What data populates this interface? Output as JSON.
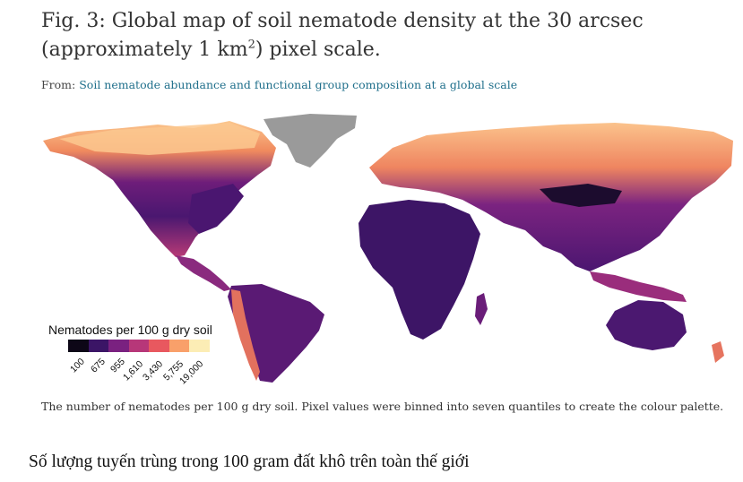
{
  "figure": {
    "title_line1": "Fig. 3: Global map of soil nematode density at the 30 arcsec",
    "title_line2_pre": "(approximately 1 km",
    "title_line2_sup": "2",
    "title_line2_post": ") pixel scale.",
    "from_label": "From:",
    "from_link": "Soil nematode abundance and functional group composition at a global scale",
    "caption": "The number of nematodes per 100 g dry soil. Pixel values were binned into seven quantiles to create the colour palette."
  },
  "legend": {
    "title": "Nematodes per 100 g dry soil",
    "ticks": [
      "100",
      "675",
      "955",
      "1,610",
      "3,430",
      "5,755",
      "19,000"
    ],
    "colors": [
      "#0d0717",
      "#3b1566",
      "#7a2180",
      "#b73779",
      "#e8585f",
      "#f9a06a",
      "#fcedb5"
    ]
  },
  "map": {
    "no_data_color": "#9a9a9a",
    "ocean_color": "#ffffff"
  },
  "vietnamese_caption": "Số lượng tuyến trùng trong 100 gram đất khô trên toàn thế giới"
}
